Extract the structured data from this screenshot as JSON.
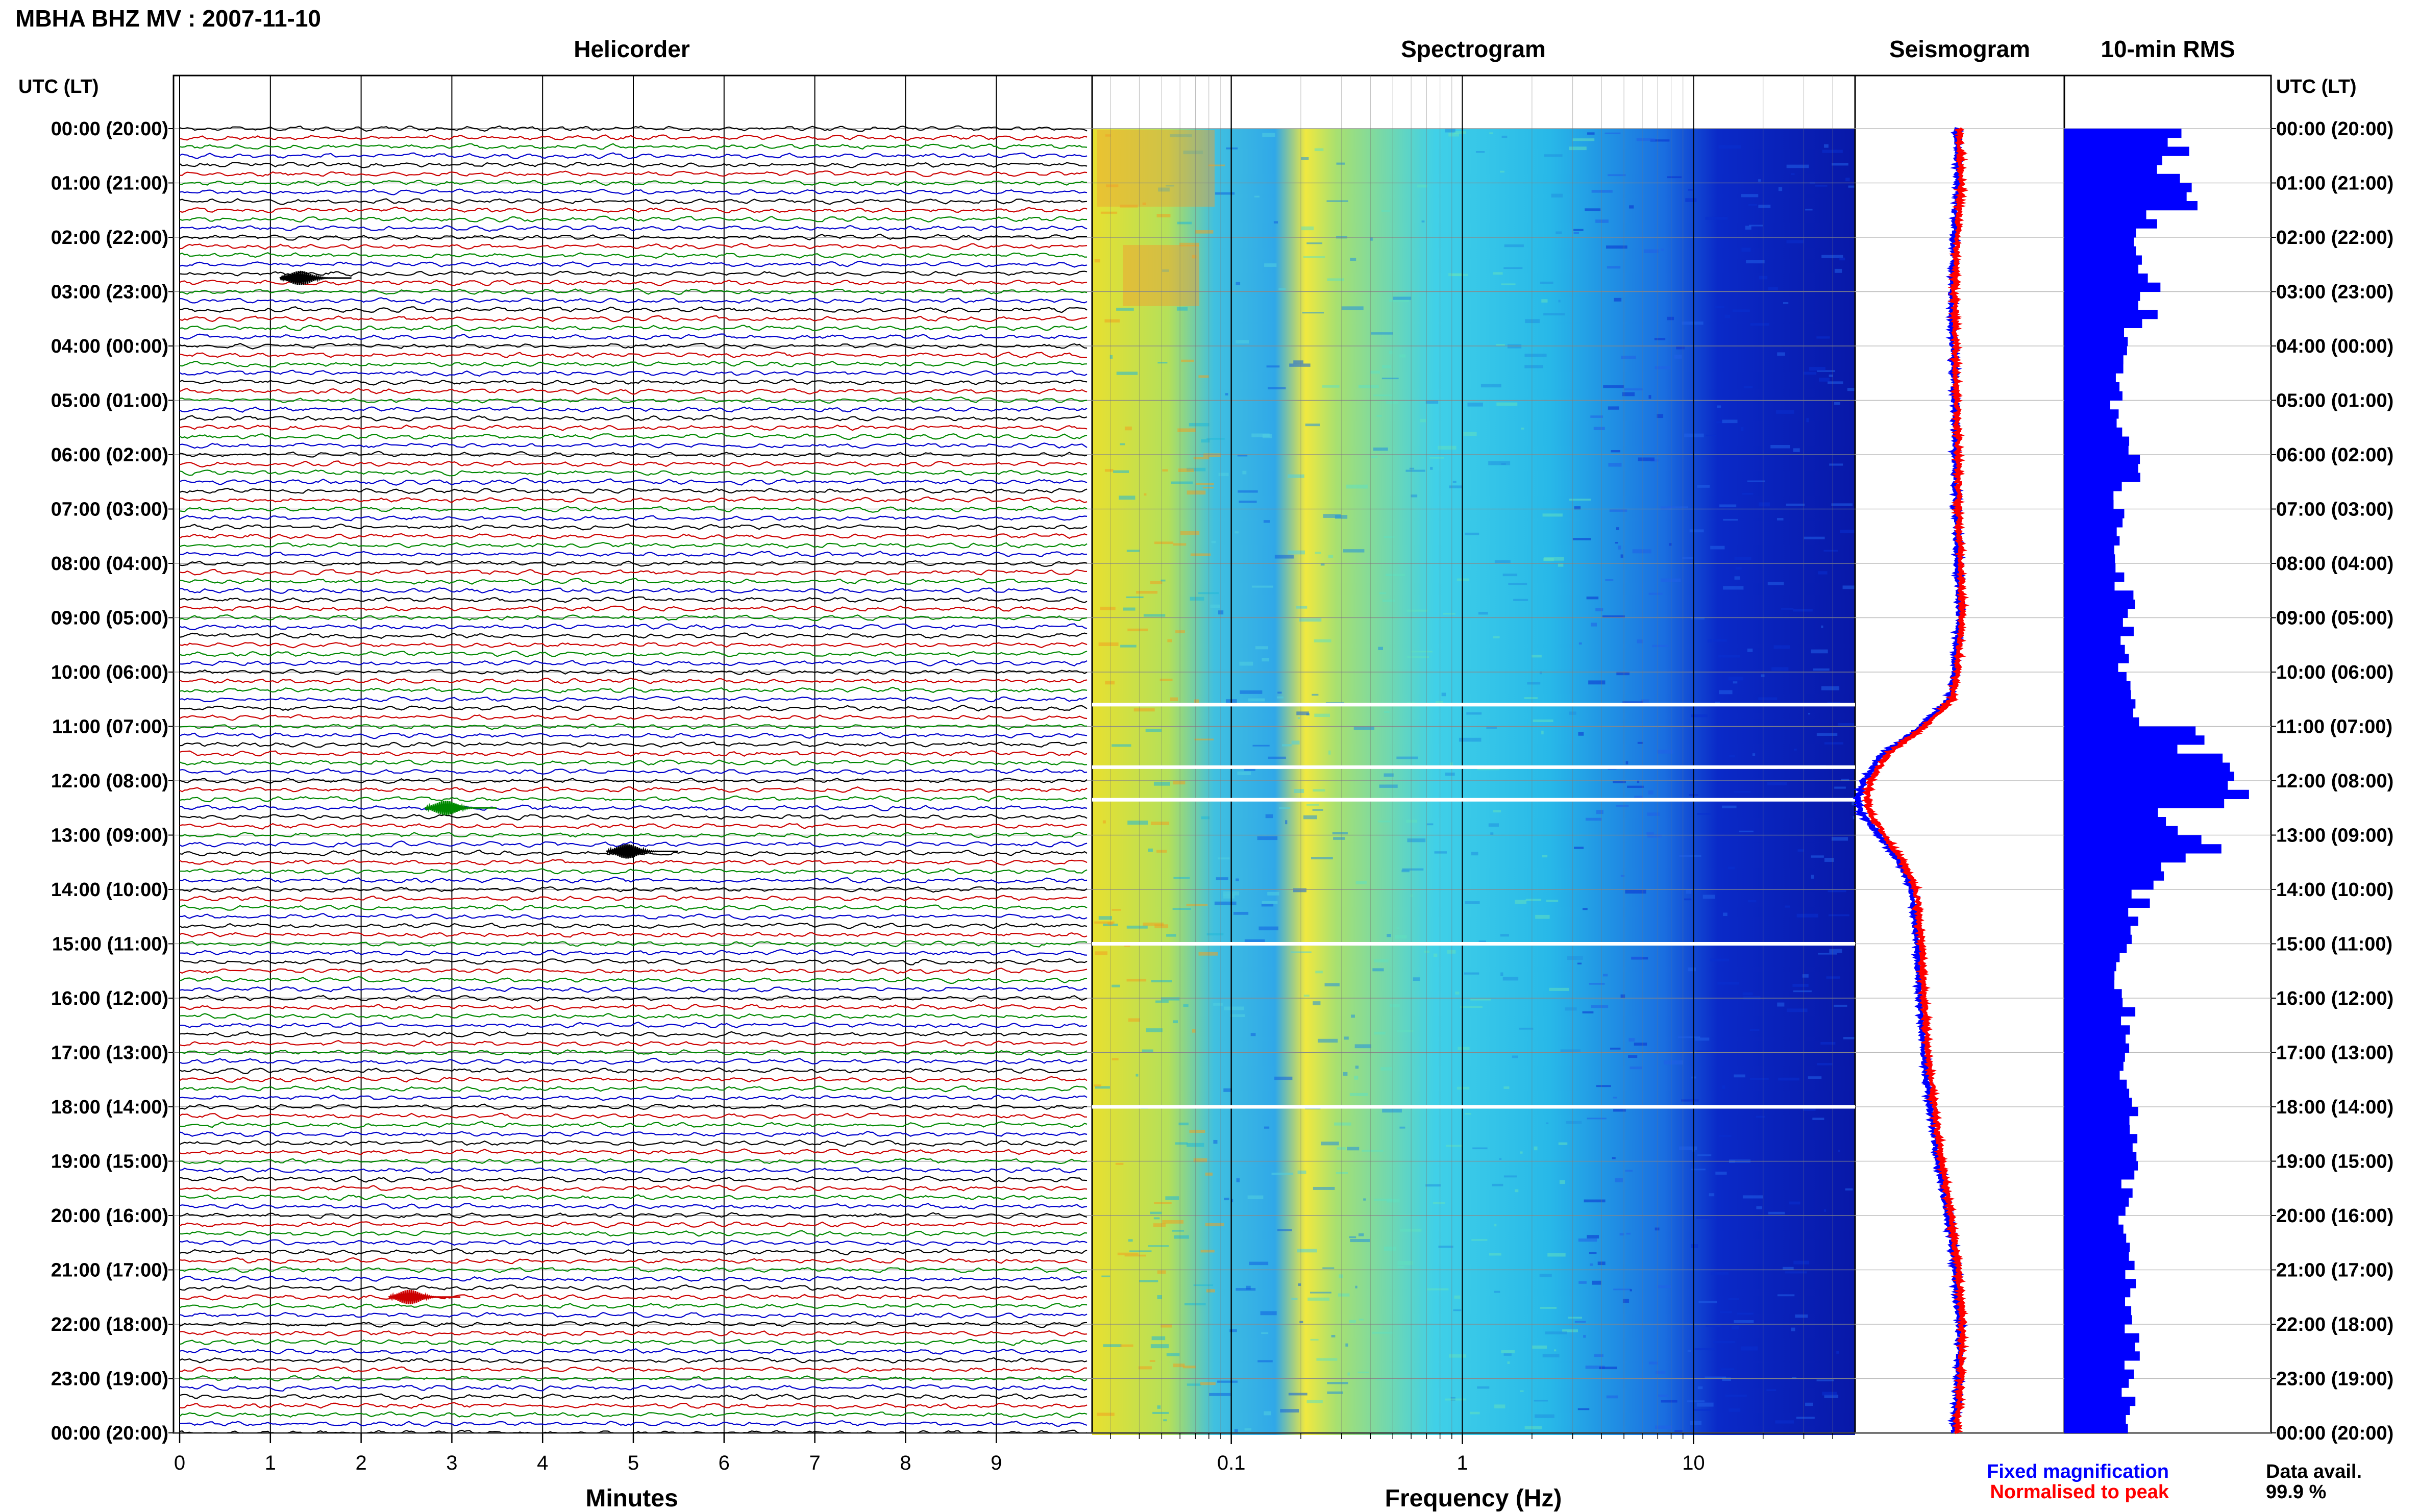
{
  "header": {
    "station_title": "MBHA BHZ MV : 2007-11-10"
  },
  "panels": {
    "helicorder": "Helicorder",
    "spectrogram": "Spectrogram",
    "seismogram": "Seismogram",
    "rms": "10-min RMS"
  },
  "axes": {
    "utc_label_left": "UTC (LT)",
    "utc_label_right": "UTC (LT)",
    "minutes_label": "Minutes",
    "frequency_label": "Frequency (Hz)",
    "minute_ticks": [
      "0",
      "1",
      "2",
      "3",
      "4",
      "5",
      "6",
      "7",
      "8",
      "9"
    ],
    "frequency_ticks": [
      "0.1",
      "1",
      "10"
    ],
    "hour_labels": [
      "00:00 (20:00)",
      "01:00 (21:00)",
      "02:00 (22:00)",
      "03:00 (23:00)",
      "04:00 (00:00)",
      "05:00 (01:00)",
      "06:00 (02:00)",
      "07:00 (03:00)",
      "08:00 (04:00)",
      "09:00 (05:00)",
      "10:00 (06:00)",
      "11:00 (07:00)",
      "12:00 (08:00)",
      "13:00 (09:00)",
      "14:00 (10:00)",
      "15:00 (11:00)",
      "16:00 (12:00)",
      "17:00 (13:00)",
      "18:00 (14:00)",
      "19:00 (15:00)",
      "20:00 (16:00)",
      "21:00 (17:00)",
      "22:00 (18:00)",
      "23:00 (19:00)",
      "00:00 (20:00)"
    ]
  },
  "legend": {
    "fixed": "Fixed magnification",
    "normalised": "Normalised to peak",
    "fixed_color": "#0000ff",
    "normalised_color": "#ff0000"
  },
  "availability": {
    "label": "Data avail.",
    "value": "99.9 %"
  },
  "colors": {
    "trace_cycle": [
      "#000000",
      "#cc0000",
      "#008800",
      "#0000cc"
    ],
    "rms_bar": "#0000ff"
  },
  "chart_data": [
    {
      "type": "line",
      "title": "Helicorder",
      "xlabel": "Minutes",
      "xlim": [
        0,
        10
      ],
      "ylim_hours": [
        0,
        24
      ],
      "rows_per_hour": 6,
      "events": [
        {
          "hour": 2.75,
          "minute": 1.5,
          "color": "#000000"
        },
        {
          "hour": 12.5,
          "minute": 3.1,
          "color": "#008800"
        },
        {
          "hour": 13.3,
          "minute": 5.1,
          "color": "#000000"
        },
        {
          "hour": 21.5,
          "minute": 2.7,
          "color": "#cc0000"
        }
      ]
    },
    {
      "type": "heatmap",
      "title": "Spectrogram",
      "xlabel": "Frequency (Hz)",
      "xscale": "log",
      "xlim": [
        0.025,
        50
      ],
      "gaps_hours": [
        10.6,
        11.75,
        12.35,
        15.0,
        18.0
      ]
    },
    {
      "type": "line",
      "title": "Seismogram",
      "x": [
        0.0,
        1.0,
        2.0,
        3.0,
        4.0,
        5.0,
        6.0,
        7.0,
        8.0,
        9.0,
        10.0,
        10.5,
        11.0,
        11.5,
        12.0,
        12.3,
        12.6,
        13.0,
        13.5,
        14.0,
        15.0,
        16.0,
        17.0,
        18.0,
        19.0,
        20.0,
        21.0,
        22.0,
        23.0,
        24.0
      ],
      "series": [
        {
          "name": "Fixed magnification",
          "values": [
            0.78,
            0.79,
            0.76,
            0.74,
            0.75,
            0.76,
            0.77,
            0.77,
            0.79,
            0.8,
            0.76,
            0.72,
            0.5,
            0.2,
            0.05,
            0.0,
            0.03,
            0.17,
            0.33,
            0.43,
            0.47,
            0.49,
            0.52,
            0.57,
            0.63,
            0.71,
            0.77,
            0.8,
            0.79,
            0.76
          ]
        },
        {
          "name": "Normalised to peak",
          "values": [
            0.8,
            0.81,
            0.78,
            0.76,
            0.77,
            0.78,
            0.79,
            0.79,
            0.81,
            0.82,
            0.78,
            0.74,
            0.53,
            0.24,
            0.1,
            0.07,
            0.1,
            0.21,
            0.36,
            0.46,
            0.5,
            0.52,
            0.55,
            0.6,
            0.66,
            0.73,
            0.79,
            0.82,
            0.81,
            0.78
          ]
        }
      ],
      "xlabel_hours": "UTC"
    },
    {
      "type": "bar",
      "title": "10-min RMS",
      "hours_start": [
        0,
        0.5,
        1,
        1.5,
        2,
        2.5,
        3,
        3.5,
        4,
        4.5,
        5,
        5.5,
        6,
        6.5,
        7,
        7.5,
        8,
        8.5,
        9,
        9.5,
        10,
        10.5,
        11,
        11.5,
        12,
        12.5,
        13,
        13.5,
        14,
        14.5,
        15,
        15.5,
        16,
        16.5,
        17,
        17.5,
        18,
        18.5,
        19,
        19.5,
        20,
        20.5,
        21,
        21.5,
        22,
        22.5,
        23,
        23.5
      ],
      "values": [
        0.55,
        0.52,
        0.58,
        0.4,
        0.35,
        0.42,
        0.4,
        0.33,
        0.28,
        0.27,
        0.26,
        0.28,
        0.32,
        0.27,
        0.28,
        0.27,
        0.28,
        0.3,
        0.32,
        0.3,
        0.3,
        0.32,
        0.62,
        0.75,
        0.8,
        0.5,
        0.68,
        0.48,
        0.36,
        0.32,
        0.28,
        0.28,
        0.3,
        0.3,
        0.3,
        0.34,
        0.33,
        0.32,
        0.32,
        0.3,
        0.3,
        0.3,
        0.31,
        0.3,
        0.32,
        0.32,
        0.31,
        0.3
      ],
      "xlim": [
        0,
        1
      ]
    }
  ]
}
